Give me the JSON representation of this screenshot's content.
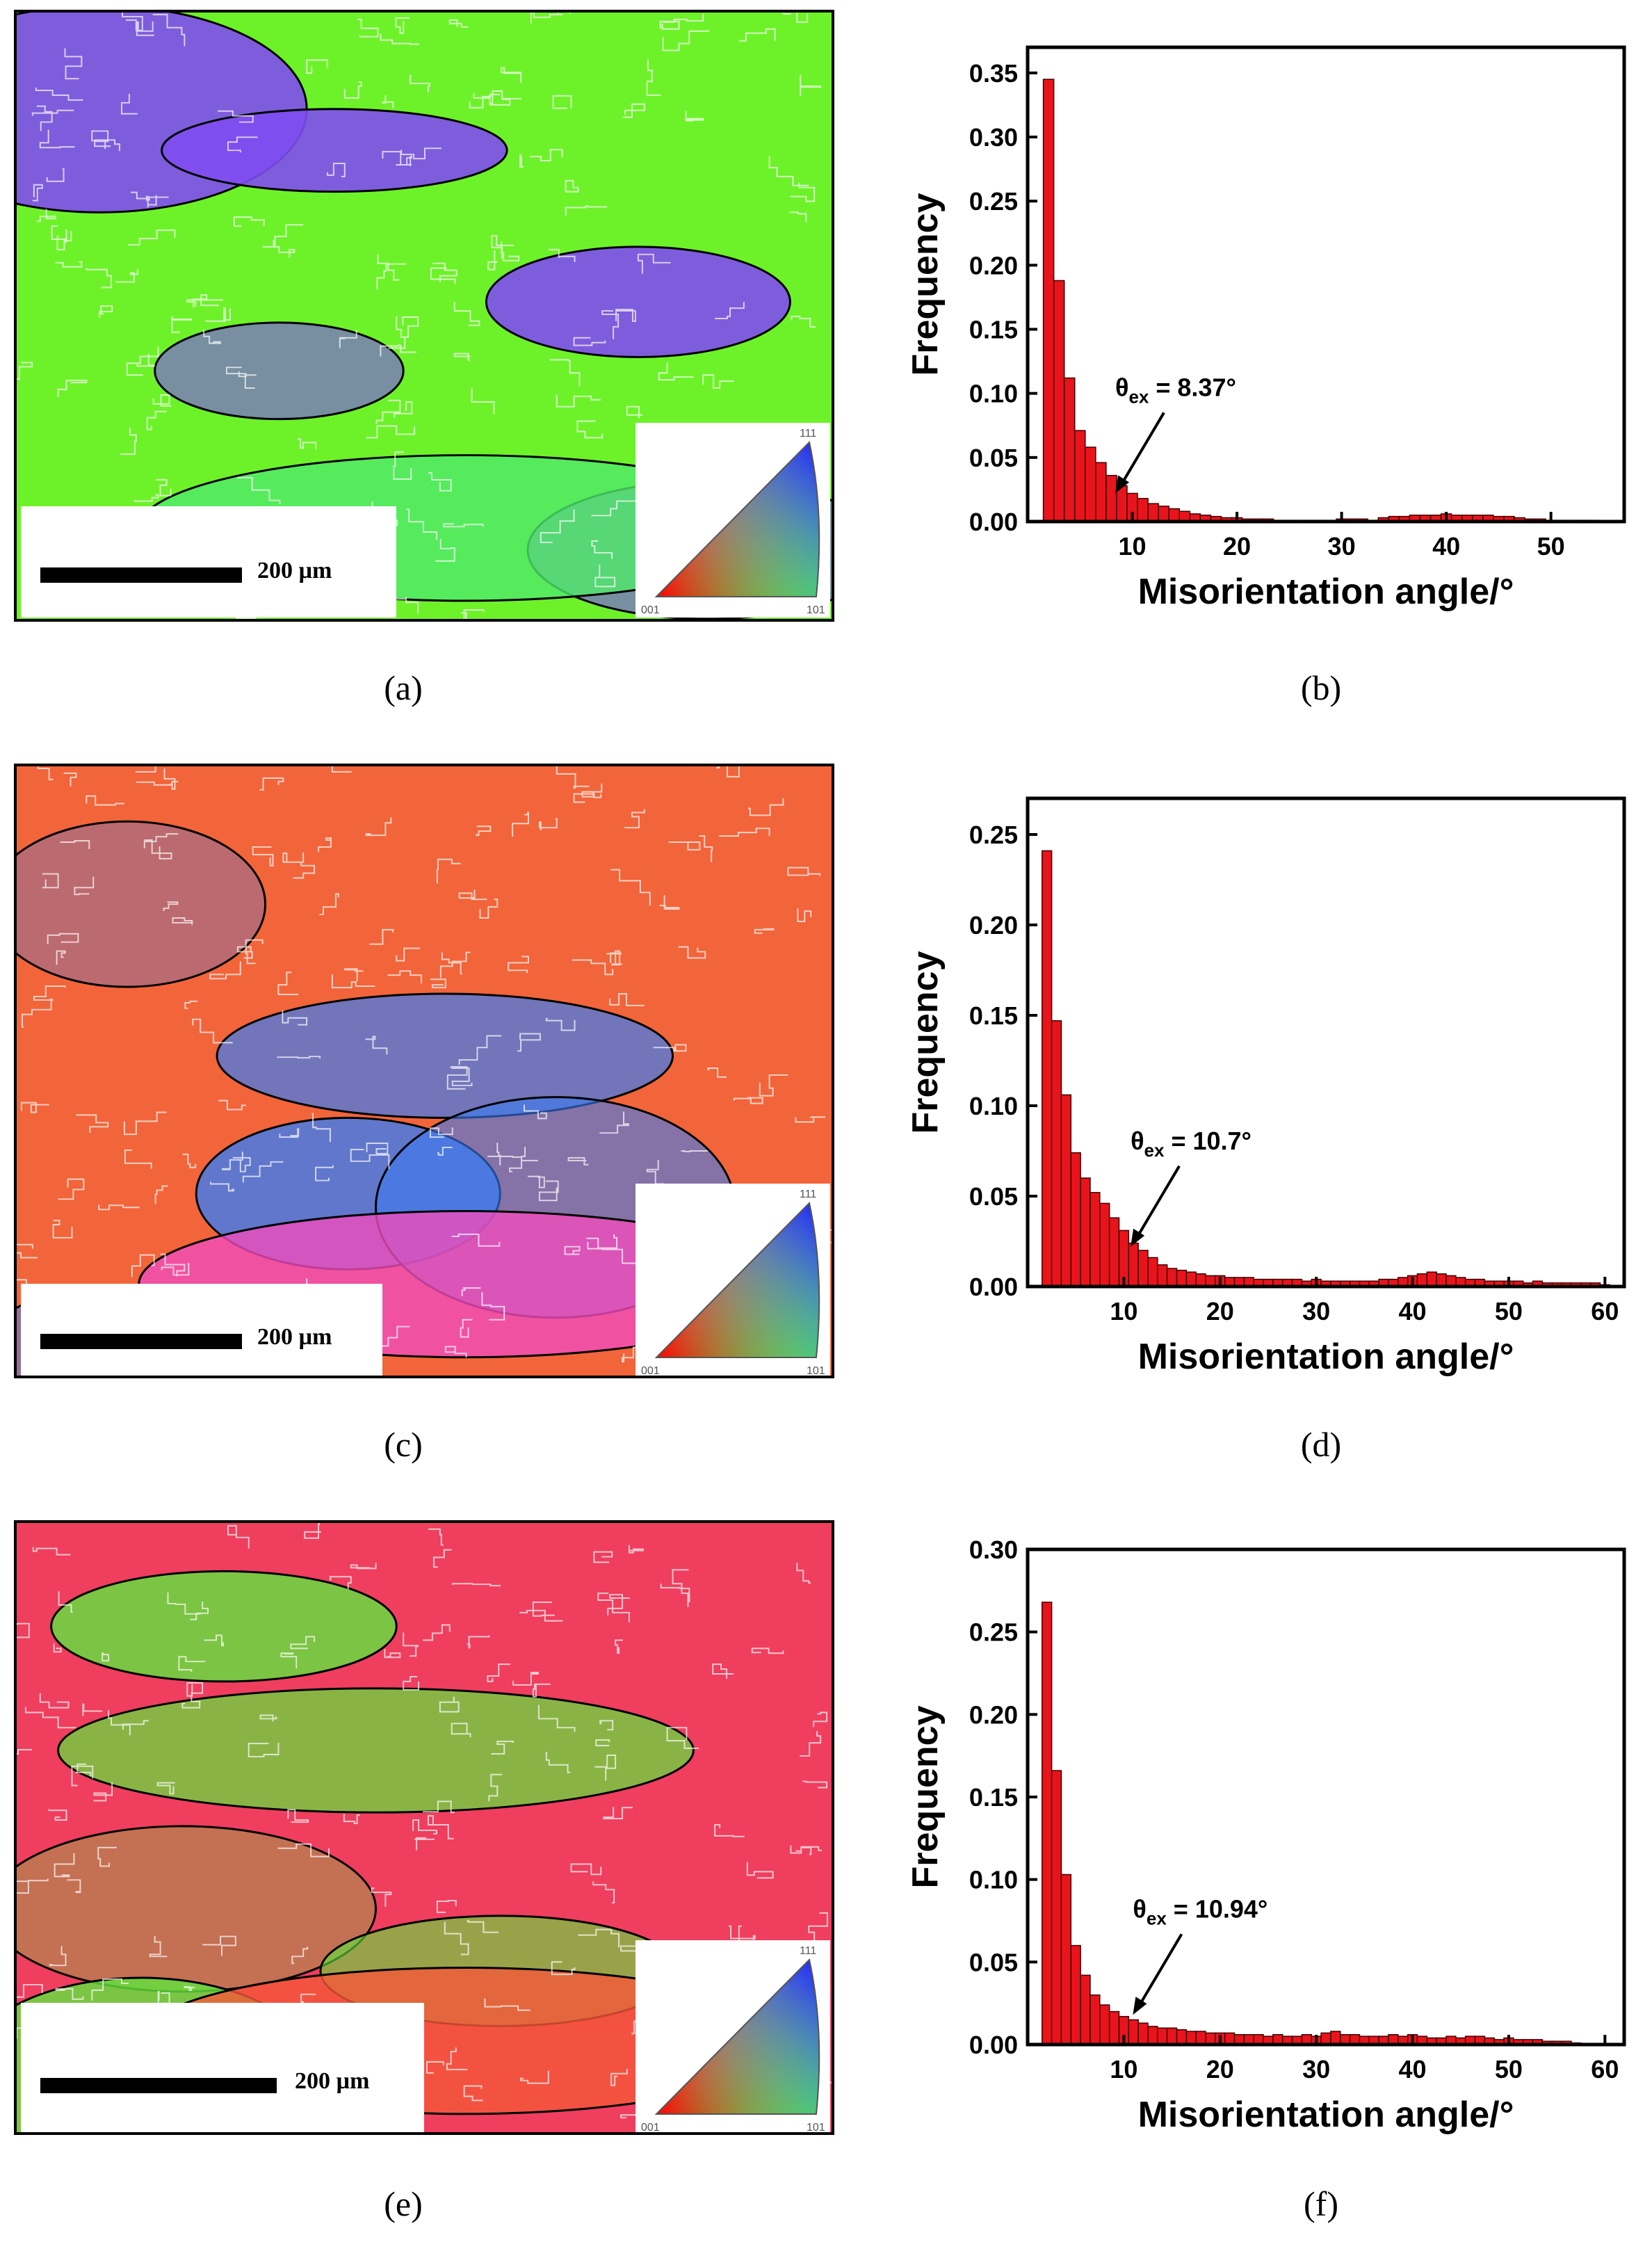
{
  "panels": [
    {
      "caption": "(a)",
      "scale_label": "200 µm",
      "ipf_labels": [
        "001",
        "101",
        "111"
      ],
      "palette": [
        "#6df22a",
        "#7f4cf0",
        "#4fe86a"
      ]
    },
    {
      "caption": "(c)",
      "scale_label": "200 µm",
      "ipf_labels": [
        "001",
        "101",
        "111"
      ],
      "palette": [
        "#f2643a",
        "#3c7cf0",
        "#f04cbc"
      ]
    },
    {
      "caption": "(e)",
      "scale_label": "200 µm",
      "ipf_labels": [
        "001",
        "101",
        "111"
      ],
      "palette": [
        "#ef3e5e",
        "#5fe63c",
        "#f5583a"
      ]
    }
  ],
  "hist_captions": [
    "(b)",
    "(d)",
    "(f)"
  ],
  "chart_data": [
    {
      "type": "bar",
      "xlabel": "Misorientation angle/°",
      "ylabel": "Frequency",
      "xlim": [
        0,
        57
      ],
      "ylim": [
        0,
        0.37
      ],
      "xticks": [
        10,
        20,
        30,
        40,
        50
      ],
      "yticks": [
        0.0,
        0.05,
        0.1,
        0.15,
        0.2,
        0.25,
        0.3,
        0.35
      ],
      "bin_start": 2,
      "bin_width": 1,
      "values": [
        0.345,
        0.188,
        0.112,
        0.071,
        0.058,
        0.046,
        0.036,
        0.028,
        0.022,
        0.018,
        0.014,
        0.012,
        0.01,
        0.008,
        0.006,
        0.005,
        0.004,
        0.003,
        0.003,
        0.002,
        0.002,
        0.002,
        0.001,
        0.001,
        0.001,
        0.001,
        0.001,
        0.001,
        0.002,
        0.002,
        0.002,
        0.001,
        0.003,
        0.004,
        0.004,
        0.005,
        0.005,
        0.005,
        0.006,
        0.005,
        0.005,
        0.005,
        0.005,
        0.004,
        0.004,
        0.003,
        0.002,
        0.002,
        0.001,
        0.001,
        0.001,
        0.001,
        0.001
      ],
      "annotation": {
        "prefix": "θ",
        "sub": "ex",
        "value": " = 8.37°",
        "x": 8.37,
        "y": 0.022
      }
    },
    {
      "type": "bar",
      "xlabel": "Misorientation angle/°",
      "ylabel": "Frequency",
      "xlim": [
        0,
        62
      ],
      "ylim": [
        0,
        0.27
      ],
      "xticks": [
        10,
        20,
        30,
        40,
        50,
        60
      ],
      "yticks": [
        0.0,
        0.05,
        0.1,
        0.15,
        0.2,
        0.25
      ],
      "bin_start": 2,
      "bin_width": 1,
      "values": [
        0.241,
        0.147,
        0.106,
        0.074,
        0.06,
        0.052,
        0.046,
        0.038,
        0.031,
        0.024,
        0.02,
        0.016,
        0.012,
        0.01,
        0.009,
        0.008,
        0.007,
        0.006,
        0.006,
        0.005,
        0.005,
        0.005,
        0.004,
        0.004,
        0.004,
        0.004,
        0.004,
        0.003,
        0.004,
        0.003,
        0.003,
        0.003,
        0.003,
        0.003,
        0.003,
        0.004,
        0.004,
        0.005,
        0.006,
        0.007,
        0.008,
        0.007,
        0.006,
        0.005,
        0.004,
        0.004,
        0.003,
        0.003,
        0.003,
        0.003,
        0.002,
        0.003,
        0.002,
        0.002,
        0.002,
        0.002,
        0.002,
        0.002,
        0.001
      ],
      "annotation": {
        "prefix": "θ",
        "sub": "ex",
        "value": " = 10.7°",
        "x": 10.7,
        "y": 0.022
      }
    },
    {
      "type": "bar",
      "xlabel": "Misorientation angle/°",
      "ylabel": "Frequency",
      "xlim": [
        0,
        62
      ],
      "ylim": [
        0,
        0.3
      ],
      "xticks": [
        10,
        20,
        30,
        40,
        50,
        60
      ],
      "yticks": [
        0.0,
        0.05,
        0.1,
        0.15,
        0.2,
        0.25,
        0.3
      ],
      "bin_start": 2,
      "bin_width": 1,
      "values": [
        0.268,
        0.166,
        0.103,
        0.06,
        0.042,
        0.03,
        0.024,
        0.02,
        0.017,
        0.015,
        0.013,
        0.011,
        0.01,
        0.01,
        0.009,
        0.008,
        0.008,
        0.007,
        0.007,
        0.007,
        0.006,
        0.006,
        0.006,
        0.005,
        0.006,
        0.005,
        0.005,
        0.006,
        0.005,
        0.007,
        0.008,
        0.006,
        0.006,
        0.005,
        0.005,
        0.005,
        0.006,
        0.005,
        0.006,
        0.005,
        0.004,
        0.004,
        0.005,
        0.004,
        0.005,
        0.005,
        0.004,
        0.003,
        0.004,
        0.003,
        0.003,
        0.003,
        0.002,
        0.002,
        0.002,
        0.001
      ],
      "annotation": {
        "prefix": "θ",
        "sub": "ex",
        "value": " = 10.94°",
        "x": 10.94,
        "y": 0.018
      }
    }
  ]
}
